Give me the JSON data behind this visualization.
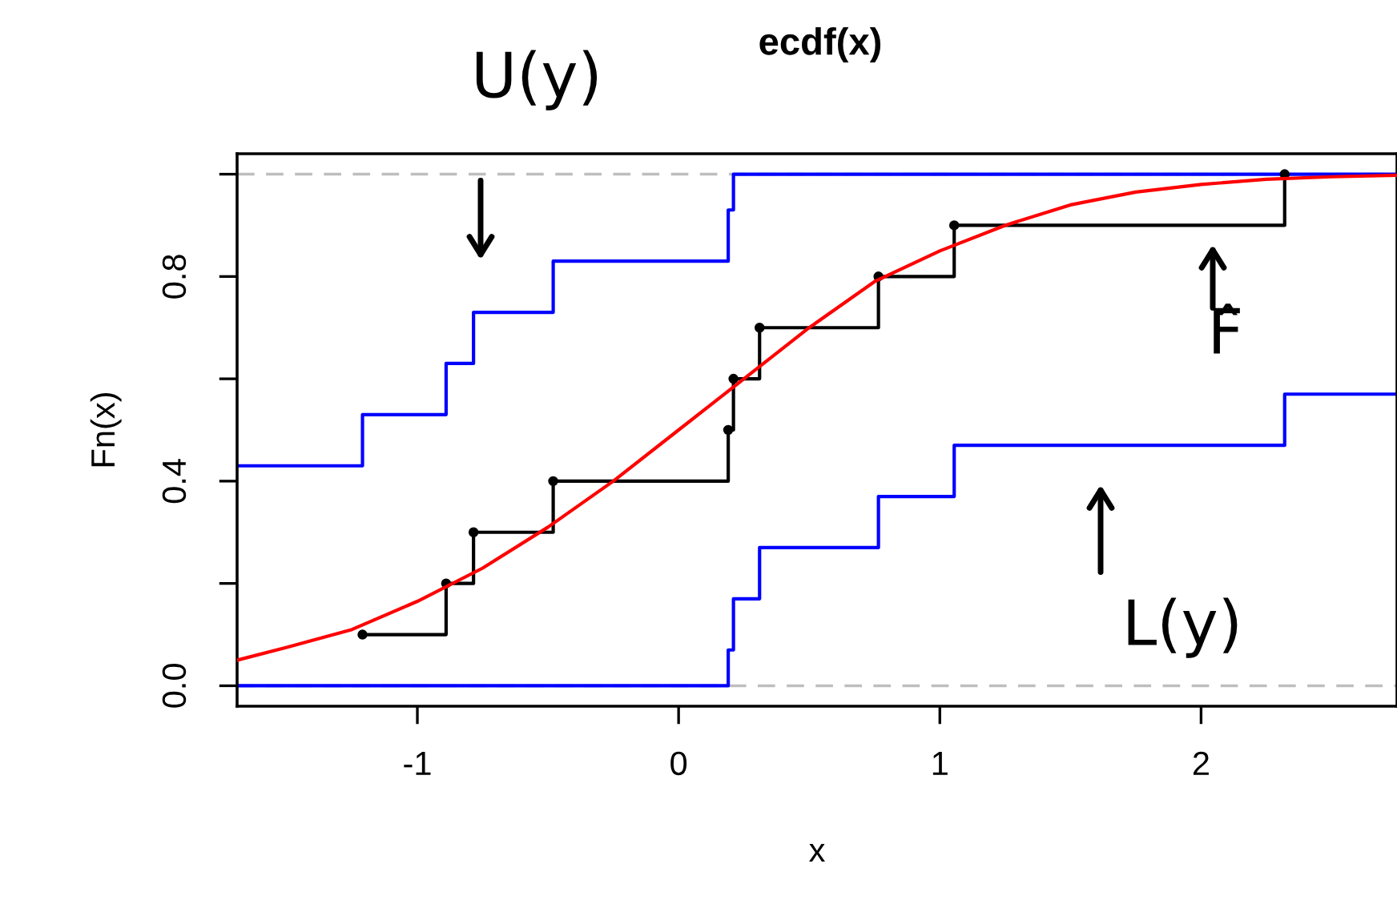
{
  "chart_data": {
    "type": "step",
    "title": "ecdf(x)",
    "xlabel": "x",
    "ylabel": "Fn(x)",
    "xlim": [
      -1.69,
      2.75
    ],
    "ylim": [
      -0.04,
      1.04
    ],
    "xticks": [
      -1,
      0,
      1,
      2
    ],
    "yticks": [
      {
        "value": 0,
        "label": "0.0"
      },
      {
        "value": 0.2,
        "label": null
      },
      {
        "value": 0.4,
        "label": "0.4"
      },
      {
        "value": 0.6,
        "label": null
      },
      {
        "value": 0.8,
        "label": "0.8"
      },
      {
        "value": 1.0,
        "label": null
      }
    ],
    "grid": false,
    "legend": false,
    "ref_lines": [
      {
        "axis": "y",
        "value": 0,
        "color": "#bebebe",
        "line_style": "dashed"
      },
      {
        "axis": "y",
        "value": 1,
        "color": "#bebebe",
        "line_style": "dashed"
      }
    ],
    "series": [
      {
        "color": "#0000ff",
        "marker": "none",
        "x": [
          -1.69,
          -1.21,
          -0.89,
          -0.785,
          -0.48,
          0.19,
          0.21,
          2.75
        ],
        "values": [
          0.43,
          0.53,
          0.63,
          0.73,
          0.83,
          0.93,
          1.0,
          1.0
        ]
      },
      {
        "color": "#0000ff",
        "marker": "none",
        "x": [
          -1.69,
          0.19,
          0.21,
          0.31,
          0.765,
          1.055,
          2.32,
          2.75
        ],
        "values": [
          0,
          0.07,
          0.17,
          0.27,
          0.37,
          0.47,
          0.57,
          0.57
        ]
      },
      {
        "color": "#000000",
        "marker": "circle",
        "x": [
          -1.21,
          -0.89,
          -0.785,
          -0.48,
          0.19,
          0.21,
          0.31,
          0.765,
          1.055,
          2.32
        ],
        "values": [
          0.1,
          0.2,
          0.3,
          0.4,
          0.5,
          0.6,
          0.7,
          0.8,
          0.9,
          1.0
        ]
      },
      {
        "type": "line",
        "color": "#ff0000",
        "marker": "none",
        "x": [
          -1.69,
          -1.5,
          -1.25,
          -1,
          -0.75,
          -0.5,
          -0.25,
          0,
          0.25,
          0.5,
          0.75,
          1,
          1.25,
          1.5,
          1.75,
          2,
          2.25,
          2.5,
          2.75
        ],
        "values": [
          0.05,
          0.075,
          0.11,
          0.165,
          0.23,
          0.31,
          0.4,
          0.5,
          0.6,
          0.7,
          0.79,
          0.85,
          0.9,
          0.94,
          0.965,
          0.98,
          0.99,
          0.995,
          0.998
        ]
      }
    ],
    "annotations": [
      "U(y)",
      "F̂",
      "L(y)"
    ]
  }
}
